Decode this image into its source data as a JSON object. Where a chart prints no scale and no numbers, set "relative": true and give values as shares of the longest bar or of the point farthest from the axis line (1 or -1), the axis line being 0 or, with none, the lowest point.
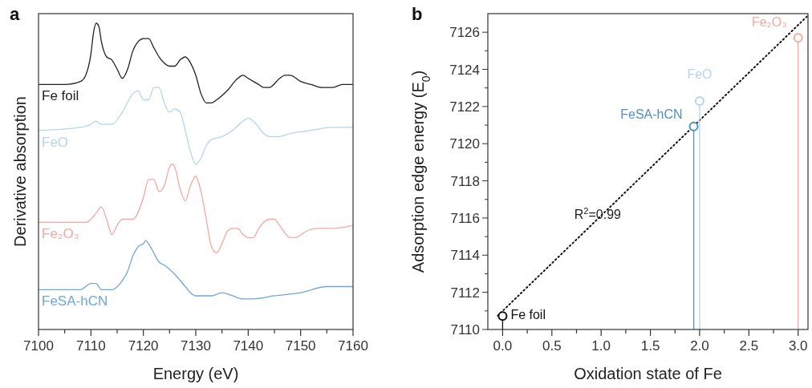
{
  "chart_data": [
    {
      "type": "line",
      "title": "a",
      "xlabel": "Energy (eV)",
      "ylabel": "Derivative absorption",
      "relative": true,
      "tick_labels": "x",
      "xlim": [
        7100,
        7160
      ],
      "xticks": [
        7100,
        {
          "value": 7105,
          "label": null
        },
        7110,
        {
          "value": 7115,
          "label": null
        },
        7120,
        {
          "value": 7125,
          "label": null
        },
        7130,
        {
          "value": 7135,
          "label": null
        },
        7140,
        {
          "value": 7145,
          "label": null
        },
        7150,
        {
          "value": 7155,
          "label": null
        },
        7160
      ],
      "series": [
        {
          "name": "Fe foil",
          "color": "#222222",
          "x": [
            7100,
            7105,
            7108,
            7109,
            7110,
            7110.5,
            7111,
            7111.5,
            7112,
            7113,
            7114,
            7115,
            7116,
            7117,
            7118,
            7119,
            7120,
            7121,
            7122,
            7123,
            7124,
            7125,
            7126,
            7127,
            7128,
            7129,
            7130,
            7131,
            7132,
            7133,
            7134,
            7136,
            7138,
            7139,
            7140,
            7142,
            7143,
            7144,
            7146,
            7147,
            7148,
            7150,
            7152,
            7154,
            7156,
            7158,
            7160
          ],
          "values": [
            0.8,
            0.8,
            0.81,
            0.83,
            0.9,
            0.97,
            1.0,
            0.99,
            0.94,
            0.89,
            0.88,
            0.85,
            0.82,
            0.85,
            0.91,
            0.94,
            0.95,
            0.95,
            0.92,
            0.89,
            0.87,
            0.86,
            0.86,
            0.88,
            0.89,
            0.87,
            0.83,
            0.77,
            0.74,
            0.74,
            0.75,
            0.78,
            0.82,
            0.83,
            0.82,
            0.8,
            0.79,
            0.79,
            0.82,
            0.83,
            0.83,
            0.81,
            0.8,
            0.79,
            0.79,
            0.8,
            0.8
          ]
        },
        {
          "name": "FeO",
          "color": "#b8d4ea",
          "x": [
            7100,
            7108,
            7110,
            7111,
            7112,
            7113,
            7114,
            7116,
            7118,
            7119,
            7120,
            7121,
            7122,
            7123,
            7124,
            7125,
            7126,
            7127,
            7128,
            7129,
            7130,
            7131,
            7132,
            7133,
            7135,
            7137,
            7139,
            7140,
            7141,
            7143,
            7144,
            7146,
            7148,
            7152,
            7156,
            7160
          ],
          "values": [
            0.65,
            0.66,
            0.67,
            0.68,
            0.67,
            0.67,
            0.67,
            0.71,
            0.77,
            0.78,
            0.75,
            0.75,
            0.79,
            0.79,
            0.74,
            0.71,
            0.72,
            0.71,
            0.65,
            0.58,
            0.54,
            0.56,
            0.6,
            0.62,
            0.63,
            0.65,
            0.68,
            0.69,
            0.68,
            0.64,
            0.63,
            0.63,
            0.64,
            0.65,
            0.66,
            0.66
          ]
        },
        {
          "name": "Fe₂O₃",
          "color": "#f4a9a0",
          "x": [
            7100,
            7109,
            7110,
            7111,
            7112,
            7113,
            7114,
            7115,
            7116,
            7118,
            7120,
            7121,
            7122,
            7123,
            7124,
            7125,
            7125.5,
            7126,
            7127,
            7128,
            7129,
            7130,
            7131,
            7132,
            7133,
            7134,
            7135,
            7136,
            7137,
            7138,
            7139,
            7140,
            7141,
            7142,
            7144,
            7145,
            7146,
            7148,
            7149,
            7151,
            7153,
            7156,
            7160
          ],
          "values": [
            0.35,
            0.35,
            0.36,
            0.38,
            0.4,
            0.36,
            0.31,
            0.34,
            0.36,
            0.36,
            0.43,
            0.49,
            0.49,
            0.45,
            0.47,
            0.53,
            0.54,
            0.53,
            0.46,
            0.42,
            0.47,
            0.5,
            0.45,
            0.36,
            0.27,
            0.25,
            0.28,
            0.32,
            0.33,
            0.33,
            0.31,
            0.3,
            0.3,
            0.33,
            0.36,
            0.36,
            0.34,
            0.3,
            0.3,
            0.32,
            0.33,
            0.33,
            0.34
          ]
        },
        {
          "name": "FeSA-hCN",
          "color": "#6fa7d6",
          "x": [
            7100,
            7108,
            7110,
            7111,
            7112,
            7113,
            7114,
            7116,
            7117,
            7118,
            7119,
            7120,
            7120.5,
            7121,
            7122,
            7123,
            7124,
            7126,
            7128,
            7129,
            7130,
            7131,
            7133,
            7135,
            7137,
            7139,
            7141,
            7145,
            7150,
            7155,
            7160
          ],
          "values": [
            0.13,
            0.13,
            0.15,
            0.15,
            0.13,
            0.13,
            0.13,
            0.16,
            0.19,
            0.24,
            0.27,
            0.28,
            0.29,
            0.28,
            0.25,
            0.22,
            0.21,
            0.18,
            0.14,
            0.12,
            0.11,
            0.11,
            0.11,
            0.12,
            0.11,
            0.1,
            0.1,
            0.11,
            0.12,
            0.14,
            0.14
          ]
        }
      ]
    },
    {
      "type": "lollipop",
      "title": "b",
      "xlabel": "Oxidation state of Fe",
      "ylabel": "Adsorption edge energy (E$_{0}$)",
      "marker": "circle",
      "xlim": [
        -0.15,
        3.1
      ],
      "ylim": [
        7110,
        7127
      ],
      "xticks": [
        {
          "value": 0,
          "label": "0.0"
        },
        {
          "value": 0.25,
          "label": null
        },
        0.5,
        {
          "value": 0.75,
          "label": null
        },
        {
          "value": 1,
          "label": "1.0"
        },
        {
          "value": 1.25,
          "label": null
        },
        1.5,
        {
          "value": 1.75,
          "label": null
        },
        {
          "value": 2,
          "label": "2.0"
        },
        {
          "value": 2.25,
          "label": null
        },
        2.5,
        {
          "value": 2.75,
          "label": null
        },
        {
          "value": 3,
          "label": "3.0"
        }
      ],
      "yticks": [
        7110,
        {
          "value": 7111,
          "label": null
        },
        7112,
        {
          "value": 7113,
          "label": null
        },
        7114,
        {
          "value": 7115,
          "label": null
        },
        7116,
        {
          "value": 7117,
          "label": null
        },
        7118,
        {
          "value": 7119,
          "label": null
        },
        7120,
        {
          "value": 7121,
          "label": null
        },
        7122,
        {
          "value": 7123,
          "label": null
        },
        7124,
        {
          "value": 7125,
          "label": null
        },
        7126
      ],
      "annotations": [
        "R$^{2}$=0.99"
      ],
      "series": [
        {
          "type": "line",
          "color": "#111111",
          "marker": "none",
          "line_style": "dotted",
          "x": [
            -0.05,
            3.1
          ],
          "values": [
            7110.74,
            7126.9
          ]
        },
        {
          "name": "Fe foil",
          "color": "#111111",
          "x": [
            0
          ],
          "values": [
            7110.72
          ]
        },
        {
          "name": "FeSA-hCN",
          "color": "#4f8fc6",
          "x": [
            1.94
          ],
          "values": [
            7120.93
          ]
        },
        {
          "name": "FeO",
          "color": "#b8d4ea",
          "x": [
            2.0
          ],
          "values": [
            7122.3
          ]
        },
        {
          "name": "Fe₂O₃",
          "color": "#f4a9a0",
          "x": [
            3.0
          ],
          "values": [
            7125.7
          ]
        }
      ]
    }
  ]
}
